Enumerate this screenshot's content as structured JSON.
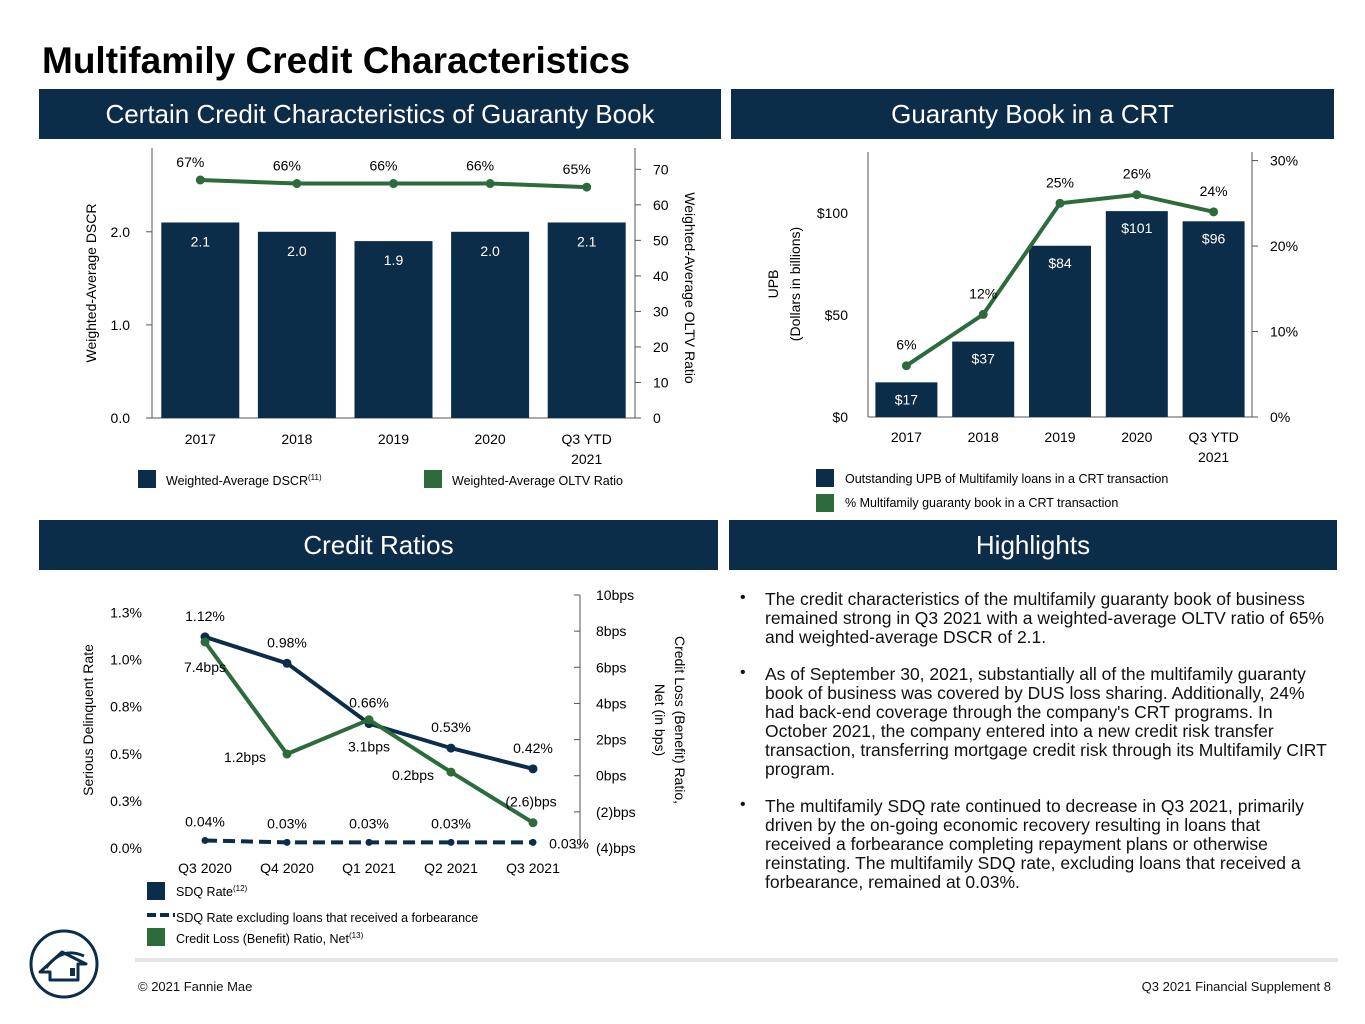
{
  "page": {
    "title": "Multifamily Credit Characteristics",
    "footer_left": "© 2021 Fannie Mae",
    "footer_right": "Q3 2021 Financial Supplement   8",
    "colors": {
      "navy": "#0c2d4a",
      "green": "#2e6b3a",
      "axis": "#555555"
    }
  },
  "sections": {
    "credit_characteristics": "Certain Credit Characteristics of Guaranty Book",
    "crt": "Guaranty Book in a CRT",
    "credit_ratios": "Credit Ratios",
    "highlights": "Highlights"
  },
  "highlights": [
    "The credit characteristics of the multifamily guaranty book of business remained strong in Q3 2021 with a weighted-average OLTV ratio of 65% and weighted-average DSCR of 2.1.",
    "As of September 30, 2021, substantially all of the multifamily guaranty book of business was covered by DUS loss sharing. Additionally, 24% had back-end coverage through the company's CRT programs. In October 2021, the company entered into a new credit risk transfer transaction, transferring mortgage credit risk through its Multifamily CIRT program.",
    "The multifamily SDQ rate continued to decrease in Q3 2021, primarily driven by the on-going economic recovery resulting in loans that received a forbearance completing repayment plans or otherwise reinstating. The multifamily SDQ rate, excluding loans that received a forbearance, remained at 0.03%."
  ],
  "chart_data": [
    {
      "type": "bar",
      "categories": [
        "2017",
        "2018",
        "2019",
        "2020",
        "Q3 YTD 2021"
      ],
      "series": [
        {
          "name": "Weighted-Average DSCR",
          "legend_sup": "(11)",
          "kind": "bar",
          "axis": "left",
          "values": [
            2.1,
            2.0,
            1.9,
            2.0,
            2.1
          ],
          "labels": [
            "2.1",
            "2.0",
            "1.9",
            "2.0",
            "2.1"
          ]
        },
        {
          "name": "Weighted-Average OLTV Ratio",
          "kind": "line",
          "axis": "right",
          "values": [
            67,
            66,
            66,
            66,
            65
          ],
          "labels": [
            "67%",
            "66%",
            "66%",
            "66%",
            "65%"
          ]
        }
      ],
      "ylabel": "Weighted-Average DSCR",
      "y2label": "Weighted-Average OLTV Ratio",
      "ylim": [
        0,
        2.9
      ],
      "y_ticks": [
        0.0,
        1.0,
        2.0
      ],
      "y_tick_labels": [
        "0.0",
        "1.0",
        "2.0"
      ],
      "y2lim": [
        0,
        76
      ],
      "y2_ticks": [
        0,
        10,
        20,
        30,
        40,
        50,
        60,
        70
      ],
      "y2_tick_labels": [
        "0",
        "10",
        "20",
        "30",
        "40",
        "50",
        "60",
        "70"
      ],
      "legend": "bottom",
      "grid": false
    },
    {
      "type": "bar",
      "categories": [
        "2017",
        "2018",
        "2019",
        "2020",
        "Q3 YTD 2021"
      ],
      "series": [
        {
          "name": "Outstanding UPB of Multifamily loans in a CRT transaction",
          "kind": "bar",
          "axis": "left",
          "values": [
            17,
            37,
            84,
            101,
            96
          ],
          "labels": [
            "$17",
            "$37",
            "$84",
            "$101",
            "$96"
          ]
        },
        {
          "name": "% Multifamily guaranty book in a CRT transaction",
          "kind": "line",
          "axis": "right",
          "values": [
            6,
            12,
            25,
            26,
            24
          ],
          "labels": [
            "6%",
            "12%",
            "25%",
            "26%",
            "24%"
          ]
        }
      ],
      "ylabel": "UPB",
      "ylabel2": "(Dollars in billions)",
      "ylim": [
        0,
        130
      ],
      "y_ticks": [
        0,
        50,
        100
      ],
      "y_tick_labels": [
        "$0",
        "$50",
        "$100"
      ],
      "y2lim": [
        0,
        31
      ],
      "y2_ticks": [
        0,
        10,
        20,
        30
      ],
      "y2_tick_labels": [
        "0%",
        "10%",
        "20%",
        "30%"
      ],
      "legend": "bottom",
      "grid": false
    },
    {
      "type": "line",
      "categories": [
        "Q3 2020",
        "Q4 2020",
        "Q1 2021",
        "Q2 2021",
        "Q3 2021"
      ],
      "series": [
        {
          "name": "SDQ Rate",
          "legend_sup": "(12)",
          "axis": "left",
          "style": "solid",
          "values": [
            1.12,
            0.98,
            0.66,
            0.53,
            0.42
          ],
          "labels": [
            "1.12%",
            "0.98%",
            "0.66%",
            "0.53%",
            "0.42%"
          ]
        },
        {
          "name": "SDQ Rate excluding loans that received a forbearance",
          "axis": "left",
          "style": "dashed",
          "values": [
            0.04,
            0.03,
            0.03,
            0.03,
            0.03
          ],
          "labels": [
            "0.04%",
            "0.03%",
            "0.03%",
            "0.03%",
            "0.03%"
          ]
        },
        {
          "name": "Credit Loss (Benefit) Ratio, Net",
          "legend_sup": "(13)",
          "axis": "right",
          "style": "solid",
          "values": [
            7.4,
            1.2,
            3.1,
            0.2,
            -2.6
          ],
          "labels": [
            "7.4bps",
            "1.2bps",
            "3.1bps",
            "0.2bps",
            "(2.6)bps"
          ]
        }
      ],
      "ylabel": "Serious Delinquent Rate",
      "y2label": "Credit Loss (Benefit) Ratio,",
      "y2label2": "Net (in bps)",
      "ylim": [
        0,
        1.3
      ],
      "y_ticks": [
        0,
        0.25,
        0.5,
        0.75,
        1.0,
        1.25
      ],
      "y_tick_labels": [
        "0.0%",
        "0.3%",
        "0.5%",
        "0.8%",
        "1.0%",
        "1.3%"
      ],
      "y2lim": [
        -4,
        10
      ],
      "y2_ticks": [
        -4,
        -2,
        0,
        2,
        4,
        6,
        8,
        10
      ],
      "y2_tick_labels": [
        "(4)bps",
        "(2)bps",
        "0bps",
        "2bps",
        "4bps",
        "6bps",
        "8bps",
        "10bps"
      ],
      "legend": "bottom",
      "grid": false
    }
  ]
}
